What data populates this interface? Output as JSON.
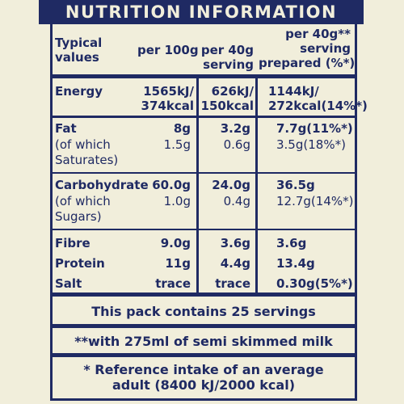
{
  "title": "NUTRITION INFORMATION",
  "header": {
    "col0": [
      "Typical",
      "values"
    ],
    "col1": "per 100g",
    "col2": [
      "per 40g",
      "serving"
    ],
    "col3": [
      "per 40g**",
      "serving",
      "prepared (%*)"
    ]
  },
  "rows": [
    {
      "name": [
        "Energy"
      ],
      "bold": true,
      "c1": [
        "1565kJ/",
        "374kcal"
      ],
      "c2": [
        "626kJ/",
        "150kcal"
      ],
      "c3": [
        "1144kJ/",
        "272kcal(14%*)"
      ]
    },
    {
      "name": [
        "Fat"
      ],
      "bold": true,
      "c1": [
        "8g"
      ],
      "c2": [
        "3.2g"
      ],
      "c3": [
        "7.7g(11%*)"
      ]
    },
    {
      "name": [
        "(of which",
        "Saturates)"
      ],
      "bold": false,
      "c1": [
        "1.5g"
      ],
      "c2": [
        "0.6g"
      ],
      "c3": [
        "3.5g(18%*)"
      ]
    },
    {
      "name": [
        "Carbohydrate"
      ],
      "bold": true,
      "c1": [
        "60.0g"
      ],
      "c2": [
        "24.0g"
      ],
      "c3": [
        "36.5g"
      ]
    },
    {
      "name": [
        "(of which",
        "Sugars)"
      ],
      "bold": false,
      "c1": [
        "1.0g"
      ],
      "c2": [
        "0.4g"
      ],
      "c3": [
        "12.7g(14%*)"
      ]
    },
    {
      "name": [
        "Fibre"
      ],
      "bold": true,
      "c1": [
        "9.0g"
      ],
      "c2": [
        "3.6g"
      ],
      "c3": [
        "3.6g"
      ]
    },
    {
      "name": [
        "Protein"
      ],
      "bold": true,
      "c1": [
        "11g"
      ],
      "c2": [
        "4.4g"
      ],
      "c3": [
        "13.4g"
      ]
    },
    {
      "name": [
        "Salt"
      ],
      "bold": true,
      "c1": [
        "trace"
      ],
      "c2": [
        "trace"
      ],
      "c3": [
        "0.30g(5%*)"
      ]
    }
  ],
  "notes": {
    "servings": "This pack contains 25 servings",
    "milk": "**with 275ml of semi skimmed milk",
    "ref_line1": "* Reference intake of an average",
    "ref_line2": "adult (8400 kJ/2000 kcal)"
  },
  "colors": {
    "ink": "#1f2a63",
    "paper": "#f1eedb"
  }
}
